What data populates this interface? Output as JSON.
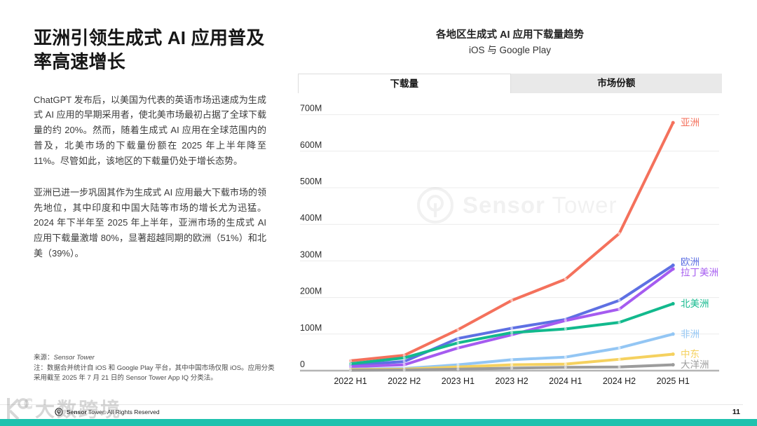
{
  "left_panel": {
    "title": "亚洲引领生成式 AI 应用普及率高速增长",
    "paragraphs": [
      "ChatGPT 发布后，以美国为代表的英语市场迅速成为生成式 AI 应用的早期采用者，使北美市场最初占据了全球下载量的约 20%。然而，随着生成式 AI 应用在全球范围内的普及，北美市场的下载量份额在 2025 年上半年降至 11%。尽管如此，该地区的下载量仍处于增长态势。",
      "亚洲已进一步巩固其作为生成式 AI 应用最大下载市场的领先地位，其中印度和中国大陆等市场的增长尤为迅猛。2024 年下半年至 2025 年上半年，亚洲市场的生成式 AI 应用下载量激增 80%，显著超越同期的欧洲（51%）和北美（39%）。"
    ],
    "source_label": "来源：",
    "source_value": "Sensor Tower",
    "note": "注：数据合并统计自 iOS 和 Google Play 平台，其中中国市场仅限 iOS。应用分类采用截至 2025 年 7 月 21 日的 Sensor Tower App IQ 分类法。"
  },
  "tabs": [
    {
      "label": "下载量",
      "active": true
    },
    {
      "label": "市场份额",
      "active": false
    }
  ],
  "watermark": {
    "chart_bold": "Sensor",
    "chart_regular": "Tower",
    "page": "大数跨境"
  },
  "footer": {
    "copyright_bold": "Sensor",
    "copyright_rest": " Tower: All Rights Reserved",
    "page_number": "11"
  },
  "colors": {
    "accent_bar": "#1FC2AE",
    "grid_line": "#ececec",
    "axis_line": "#b5b5b5"
  },
  "chart_data": {
    "type": "line",
    "title": "各地区生成式 AI 应用下载量趋势",
    "subtitle": "iOS 与 Google Play",
    "unit": "M",
    "categories": [
      "2022 H1",
      "2022 H2",
      "2023 H1",
      "2023 H2",
      "2024 H1",
      "2024 H2",
      "2025 H1"
    ],
    "yticks": [
      "0",
      "100M",
      "200M",
      "300M",
      "400M",
      "500M",
      "600M",
      "700M"
    ],
    "ylim": [
      0,
      700
    ],
    "ytick_interval": 100,
    "grid": true,
    "legend_position": "right-of-line-end",
    "series": [
      {
        "name": "亚洲",
        "color": "#F4715C",
        "values": [
          27,
          42,
          112,
          192,
          250,
          375,
          678
        ]
      },
      {
        "name": "欧洲",
        "color": "#5E70E3",
        "values": [
          15,
          25,
          88,
          116,
          140,
          192,
          288
        ]
      },
      {
        "name": "拉丁美洲",
        "color": "#A55BF0",
        "values": [
          11,
          16,
          62,
          98,
          137,
          168,
          278
        ]
      },
      {
        "name": "北美洲",
        "color": "#12B98D",
        "values": [
          19,
          35,
          76,
          104,
          114,
          132,
          183
        ]
      },
      {
        "name": "非洲",
        "color": "#93C6F4",
        "values": [
          4,
          6,
          16,
          30,
          37,
          62,
          100
        ]
      },
      {
        "name": "中东",
        "color": "#F5D15F",
        "values": [
          3,
          4,
          10,
          16,
          18,
          31,
          45
        ]
      },
      {
        "name": "大洋洲",
        "color": "#9C9C9C",
        "values": [
          1,
          2,
          4,
          7,
          9,
          10,
          16
        ]
      }
    ]
  }
}
